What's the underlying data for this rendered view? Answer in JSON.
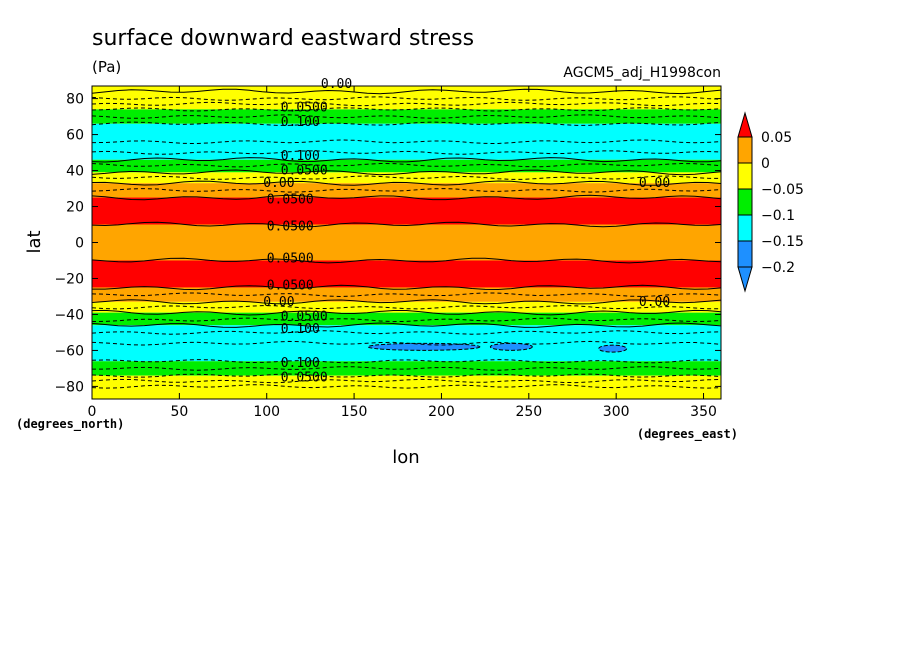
{
  "chart_data": {
    "type": "heatmap",
    "title": "surface downward eastward stress",
    "units": "(Pa)",
    "experiment": "AGCM5_adj_H1998con",
    "xlabel": "lon",
    "ylabel": "lat",
    "x_unit": "(degrees_east)",
    "y_unit": "(degrees_north)",
    "xlim": [
      0,
      360
    ],
    "ylim": [
      -87,
      87
    ],
    "x_ticks": [
      0,
      50,
      100,
      150,
      200,
      250,
      300,
      350
    ],
    "y_ticks": [
      80,
      60,
      40,
      20,
      0,
      -20,
      -40,
      -60,
      -80
    ],
    "levels": [
      0.05,
      0,
      -0.05,
      -0.1,
      -0.15,
      -0.2
    ],
    "level_labels": [
      "0.05",
      "0",
      "-0.05",
      "-0.1",
      "-0.15",
      "-0.2"
    ],
    "band_colors": [
      "#ff0000",
      "#ffa500",
      "#ffff00",
      "#00ee00",
      "#00ffff",
      "#1e90ff",
      "#1e90ff"
    ],
    "bands": [
      {
        "lat_min": 74,
        "lat_max": 87,
        "class": 2
      },
      {
        "lat_min": 66,
        "lat_max": 74,
        "class": 3
      },
      {
        "lat_min": 46,
        "lat_max": 66,
        "class": 4
      },
      {
        "lat_min": 39,
        "lat_max": 46,
        "class": 3
      },
      {
        "lat_min": 33,
        "lat_max": 39,
        "class": 2
      },
      {
        "lat_min": 25,
        "lat_max": 33,
        "class": 1
      },
      {
        "lat_min": 10,
        "lat_max": 25,
        "class": 0
      },
      {
        "lat_min": -10,
        "lat_max": 10,
        "class": 1
      },
      {
        "lat_min": -25,
        "lat_max": -10,
        "class": 0
      },
      {
        "lat_min": -33,
        "lat_max": -25,
        "class": 1
      },
      {
        "lat_min": -39,
        "lat_max": -33,
        "class": 2
      },
      {
        "lat_min": -46,
        "lat_max": -39,
        "class": 3
      },
      {
        "lat_min": -66,
        "lat_max": -46,
        "class": 4
      },
      {
        "lat_min": -74,
        "lat_max": -66,
        "class": 3
      },
      {
        "lat_min": -87,
        "lat_max": -74,
        "class": 2
      }
    ],
    "patches": [
      {
        "lon_min": 158,
        "lon_max": 222,
        "lat": -58,
        "class": 5
      },
      {
        "lon_min": 228,
        "lon_max": 252,
        "lat": -58,
        "class": 5
      },
      {
        "lon_min": 290,
        "lon_max": 306,
        "lat": -59,
        "class": 5
      }
    ],
    "solid_contours": [
      84,
      46,
      39,
      33,
      25,
      10,
      -10,
      -25,
      -33,
      -39,
      -46
    ],
    "dashed_contours": [
      80,
      77,
      74,
      70,
      66,
      56,
      50,
      43,
      36,
      29,
      -29,
      -36,
      -43,
      -50,
      -56,
      -66,
      -70,
      -74,
      -77,
      -80
    ],
    "contour_labels": [
      {
        "text": "0.00",
        "lon": 131,
        "lat": 88
      },
      {
        "text": "0.0500",
        "lon": 108,
        "lat": 75
      },
      {
        "text": "0.100",
        "lon": 108,
        "lat": 67
      },
      {
        "text": "0.100",
        "lon": 108,
        "lat": 48
      },
      {
        "text": "0.0500",
        "lon": 108,
        "lat": 40
      },
      {
        "text": "0.00",
        "lon": 98,
        "lat": 33
      },
      {
        "text": "0.00",
        "lon": 313,
        "lat": 33
      },
      {
        "text": "0.0500",
        "lon": 100,
        "lat": 24
      },
      {
        "text": "0.0500",
        "lon": 100,
        "lat": 9
      },
      {
        "text": "0.0500",
        "lon": 100,
        "lat": -9
      },
      {
        "text": "0.0500",
        "lon": 100,
        "lat": -24
      },
      {
        "text": "0.00",
        "lon": 98,
        "lat": -33
      },
      {
        "text": "0.00",
        "lon": 313,
        "lat": -33
      },
      {
        "text": "0.0500",
        "lon": 108,
        "lat": -41
      },
      {
        "text": "0.100",
        "lon": 108,
        "lat": -48
      },
      {
        "text": "0.100",
        "lon": 108,
        "lat": -67
      },
      {
        "text": "0.0500",
        "lon": 108,
        "lat": -75
      }
    ]
  }
}
